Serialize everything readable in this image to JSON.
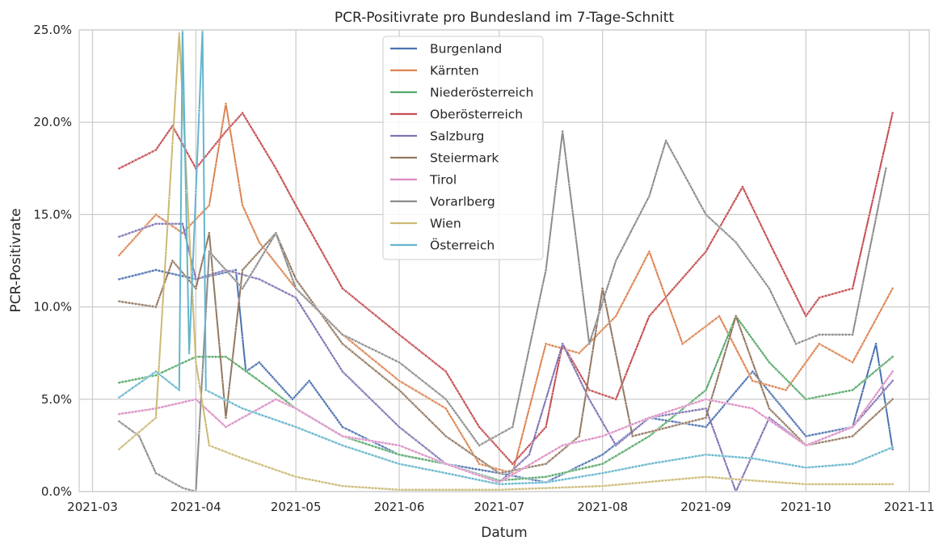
{
  "chart_data": {
    "type": "line",
    "title": "PCR-Positivrate pro Bundesland im 7-Tage-Schnitt",
    "xlabel": "Datum",
    "ylabel": "PCR-Positivrate",
    "x_ticks": [
      "2021-03",
      "2021-04",
      "2021-05",
      "2021-06",
      "2021-07",
      "2021-08",
      "2021-09",
      "2021-10",
      "2021-11"
    ],
    "y_ticks": [
      "0.0%",
      "5.0%",
      "10.0%",
      "15.0%",
      "20.0%",
      "25.0%"
    ],
    "xlim": [
      "2021-02-25",
      "2021-11-07"
    ],
    "ylim": [
      0,
      25
    ],
    "grid": true,
    "legend": "top-center",
    "markers": "small dots",
    "series": [
      {
        "name": "Burgenland",
        "color": "#4c72b0",
        "points": [
          [
            "2021-03-09",
            11.5
          ],
          [
            "2021-03-20",
            12.0
          ],
          [
            "2021-04-01",
            11.5
          ],
          [
            "2021-04-13",
            12.0
          ],
          [
            "2021-04-16",
            6.5
          ],
          [
            "2021-04-20",
            7.0
          ],
          [
            "2021-04-30",
            5.0
          ],
          [
            "2021-05-05",
            6.0
          ],
          [
            "2021-05-15",
            3.5
          ],
          [
            "2021-06-01",
            2.0
          ],
          [
            "2021-06-15",
            1.5
          ],
          [
            "2021-07-01",
            1.0
          ],
          [
            "2021-07-15",
            0.5
          ],
          [
            "2021-08-01",
            2.0
          ],
          [
            "2021-08-15",
            4.0
          ],
          [
            "2021-09-01",
            3.5
          ],
          [
            "2021-09-15",
            6.5
          ],
          [
            "2021-10-01",
            3.0
          ],
          [
            "2021-10-15",
            3.5
          ],
          [
            "2021-10-22",
            8.0
          ],
          [
            "2021-10-27",
            2.3
          ]
        ]
      },
      {
        "name": "Kärnten",
        "color": "#dd8452",
        "points": [
          [
            "2021-03-09",
            12.8
          ],
          [
            "2021-03-20",
            15.0
          ],
          [
            "2021-03-28",
            14.0
          ],
          [
            "2021-04-05",
            15.5
          ],
          [
            "2021-04-10",
            21.0
          ],
          [
            "2021-04-15",
            15.5
          ],
          [
            "2021-04-20",
            13.5
          ],
          [
            "2021-05-01",
            11.0
          ],
          [
            "2021-05-15",
            8.5
          ],
          [
            "2021-06-01",
            6.0
          ],
          [
            "2021-06-15",
            4.5
          ],
          [
            "2021-06-25",
            1.5
          ],
          [
            "2021-07-05",
            1.0
          ],
          [
            "2021-07-15",
            8.0
          ],
          [
            "2021-07-25",
            7.5
          ],
          [
            "2021-08-05",
            9.5
          ],
          [
            "2021-08-15",
            13.0
          ],
          [
            "2021-08-25",
            8.0
          ],
          [
            "2021-09-05",
            9.5
          ],
          [
            "2021-09-15",
            6.0
          ],
          [
            "2021-09-25",
            5.5
          ],
          [
            "2021-10-05",
            8.0
          ],
          [
            "2021-10-15",
            7.0
          ],
          [
            "2021-10-27",
            11.0
          ]
        ]
      },
      {
        "name": "Niederösterreich",
        "color": "#55a868",
        "points": [
          [
            "2021-03-09",
            5.9
          ],
          [
            "2021-03-20",
            6.3
          ],
          [
            "2021-04-01",
            7.3
          ],
          [
            "2021-04-10",
            7.3
          ],
          [
            "2021-04-20",
            6.0
          ],
          [
            "2021-05-01",
            4.5
          ],
          [
            "2021-05-15",
            3.0
          ],
          [
            "2021-06-01",
            2.0
          ],
          [
            "2021-06-15",
            1.5
          ],
          [
            "2021-07-01",
            0.6
          ],
          [
            "2021-07-15",
            0.8
          ],
          [
            "2021-08-01",
            1.5
          ],
          [
            "2021-08-15",
            3.0
          ],
          [
            "2021-09-01",
            5.5
          ],
          [
            "2021-09-10",
            9.5
          ],
          [
            "2021-09-20",
            7.0
          ],
          [
            "2021-10-01",
            5.0
          ],
          [
            "2021-10-15",
            5.5
          ],
          [
            "2021-10-27",
            7.3
          ]
        ]
      },
      {
        "name": "Oberösterreich",
        "color": "#c44e52",
        "points": [
          [
            "2021-03-09",
            17.5
          ],
          [
            "2021-03-20",
            18.5
          ],
          [
            "2021-03-25",
            19.8
          ],
          [
            "2021-04-01",
            17.5
          ],
          [
            "2021-04-10",
            19.5
          ],
          [
            "2021-04-15",
            20.5
          ],
          [
            "2021-04-25",
            17.5
          ],
          [
            "2021-05-01",
            15.5
          ],
          [
            "2021-05-15",
            11.0
          ],
          [
            "2021-06-01",
            8.5
          ],
          [
            "2021-06-15",
            6.5
          ],
          [
            "2021-06-25",
            3.5
          ],
          [
            "2021-07-05",
            1.5
          ],
          [
            "2021-07-15",
            3.5
          ],
          [
            "2021-07-20",
            8.0
          ],
          [
            "2021-07-28",
            5.5
          ],
          [
            "2021-08-05",
            5.0
          ],
          [
            "2021-08-15",
            9.5
          ],
          [
            "2021-09-01",
            13.0
          ],
          [
            "2021-09-12",
            16.5
          ],
          [
            "2021-09-20",
            13.5
          ],
          [
            "2021-10-01",
            9.5
          ],
          [
            "2021-10-05",
            10.5
          ],
          [
            "2021-10-15",
            11.0
          ],
          [
            "2021-10-27",
            20.5
          ]
        ]
      },
      {
        "name": "Salzburg",
        "color": "#8172b3",
        "points": [
          [
            "2021-03-09",
            13.8
          ],
          [
            "2021-03-20",
            14.5
          ],
          [
            "2021-03-28",
            14.5
          ],
          [
            "2021-04-01",
            11.5
          ],
          [
            "2021-04-10",
            12.0
          ],
          [
            "2021-04-20",
            11.5
          ],
          [
            "2021-05-01",
            10.5
          ],
          [
            "2021-05-15",
            6.5
          ],
          [
            "2021-06-01",
            3.5
          ],
          [
            "2021-06-15",
            1.5
          ],
          [
            "2021-07-01",
            0.5
          ],
          [
            "2021-07-10",
            2.0
          ],
          [
            "2021-07-20",
            8.0
          ],
          [
            "2021-07-28",
            5.0
          ],
          [
            "2021-08-05",
            2.5
          ],
          [
            "2021-08-15",
            4.0
          ],
          [
            "2021-09-01",
            4.5
          ],
          [
            "2021-09-10",
            0.0
          ],
          [
            "2021-09-20",
            4.0
          ],
          [
            "2021-10-01",
            2.5
          ],
          [
            "2021-10-15",
            3.5
          ],
          [
            "2021-10-27",
            6.0
          ]
        ]
      },
      {
        "name": "Steiermark",
        "color": "#937860",
        "points": [
          [
            "2021-03-09",
            10.3
          ],
          [
            "2021-03-20",
            10.0
          ],
          [
            "2021-03-25",
            12.5
          ],
          [
            "2021-04-01",
            11.0
          ],
          [
            "2021-04-05",
            14.0
          ],
          [
            "2021-04-10",
            4.0
          ],
          [
            "2021-04-15",
            12.0
          ],
          [
            "2021-04-25",
            14.0
          ],
          [
            "2021-05-01",
            11.5
          ],
          [
            "2021-05-15",
            8.0
          ],
          [
            "2021-06-01",
            5.5
          ],
          [
            "2021-06-15",
            3.0
          ],
          [
            "2021-07-01",
            1.0
          ],
          [
            "2021-07-15",
            1.5
          ],
          [
            "2021-07-25",
            3.0
          ],
          [
            "2021-08-01",
            11.0
          ],
          [
            "2021-08-10",
            3.0
          ],
          [
            "2021-09-01",
            4.0
          ],
          [
            "2021-09-10",
            9.5
          ],
          [
            "2021-09-20",
            4.5
          ],
          [
            "2021-10-01",
            2.5
          ],
          [
            "2021-10-15",
            3.0
          ],
          [
            "2021-10-27",
            5.0
          ]
        ]
      },
      {
        "name": "Tirol",
        "color": "#da8bc3",
        "points": [
          [
            "2021-03-09",
            4.2
          ],
          [
            "2021-03-20",
            4.5
          ],
          [
            "2021-04-01",
            5.0
          ],
          [
            "2021-04-10",
            3.5
          ],
          [
            "2021-04-25",
            5.0
          ],
          [
            "2021-05-01",
            4.5
          ],
          [
            "2021-05-15",
            3.0
          ],
          [
            "2021-06-01",
            2.5
          ],
          [
            "2021-06-15",
            1.5
          ],
          [
            "2021-07-01",
            0.5
          ],
          [
            "2021-07-20",
            2.5
          ],
          [
            "2021-08-01",
            3.0
          ],
          [
            "2021-08-15",
            4.0
          ],
          [
            "2021-09-01",
            5.0
          ],
          [
            "2021-09-15",
            4.5
          ],
          [
            "2021-10-01",
            2.5
          ],
          [
            "2021-10-15",
            3.5
          ],
          [
            "2021-10-27",
            6.5
          ]
        ]
      },
      {
        "name": "Vorarlberg",
        "color": "#8c8c8c",
        "points": [
          [
            "2021-03-09",
            3.8
          ],
          [
            "2021-03-15",
            3.0
          ],
          [
            "2021-03-20",
            1.0
          ],
          [
            "2021-03-28",
            0.2
          ],
          [
            "2021-04-01",
            0.0
          ],
          [
            "2021-04-05",
            13.0
          ],
          [
            "2021-04-15",
            11.0
          ],
          [
            "2021-04-25",
            14.0
          ],
          [
            "2021-05-01",
            11.0
          ],
          [
            "2021-05-15",
            8.5
          ],
          [
            "2021-06-01",
            7.0
          ],
          [
            "2021-06-15",
            5.0
          ],
          [
            "2021-06-25",
            2.5
          ],
          [
            "2021-07-05",
            3.5
          ],
          [
            "2021-07-15",
            12.0
          ],
          [
            "2021-07-20",
            19.5
          ],
          [
            "2021-07-28",
            8.0
          ],
          [
            "2021-08-05",
            12.5
          ],
          [
            "2021-08-15",
            16.0
          ],
          [
            "2021-08-20",
            19.0
          ],
          [
            "2021-09-01",
            15.0
          ],
          [
            "2021-09-10",
            13.5
          ],
          [
            "2021-09-20",
            11.0
          ],
          [
            "2021-09-28",
            8.0
          ],
          [
            "2021-10-05",
            8.5
          ],
          [
            "2021-10-15",
            8.5
          ],
          [
            "2021-10-25",
            17.5
          ]
        ]
      },
      {
        "name": "Wien",
        "color": "#ccb974",
        "points": [
          [
            "2021-03-09",
            2.3
          ],
          [
            "2021-03-20",
            4.0
          ],
          [
            "2021-03-27",
            24.8
          ],
          [
            "2021-04-01",
            7.0
          ],
          [
            "2021-04-05",
            2.5
          ],
          [
            "2021-04-15",
            1.8
          ],
          [
            "2021-05-01",
            0.8
          ],
          [
            "2021-05-15",
            0.3
          ],
          [
            "2021-06-01",
            0.1
          ],
          [
            "2021-07-01",
            0.1
          ],
          [
            "2021-08-01",
            0.3
          ],
          [
            "2021-09-01",
            0.8
          ],
          [
            "2021-09-15",
            0.6
          ],
          [
            "2021-10-01",
            0.4
          ],
          [
            "2021-10-27",
            0.4
          ]
        ]
      },
      {
        "name": "Österreich",
        "color": "#64b5cd",
        "points": [
          [
            "2021-03-09",
            5.1
          ],
          [
            "2021-03-20",
            6.5
          ],
          [
            "2021-03-27",
            5.5
          ],
          [
            "2021-03-28",
            25.0
          ],
          [
            "2021-03-30",
            7.5
          ],
          [
            "2021-04-03",
            25.0
          ],
          [
            "2021-04-04",
            5.5
          ],
          [
            "2021-04-15",
            4.5
          ],
          [
            "2021-05-01",
            3.5
          ],
          [
            "2021-05-15",
            2.5
          ],
          [
            "2021-06-01",
            1.5
          ],
          [
            "2021-06-15",
            1.0
          ],
          [
            "2021-07-01",
            0.4
          ],
          [
            "2021-07-15",
            0.5
          ],
          [
            "2021-08-01",
            1.0
          ],
          [
            "2021-08-15",
            1.5
          ],
          [
            "2021-09-01",
            2.0
          ],
          [
            "2021-09-15",
            1.8
          ],
          [
            "2021-10-01",
            1.3
          ],
          [
            "2021-10-15",
            1.5
          ],
          [
            "2021-10-27",
            2.4
          ]
        ]
      }
    ]
  }
}
